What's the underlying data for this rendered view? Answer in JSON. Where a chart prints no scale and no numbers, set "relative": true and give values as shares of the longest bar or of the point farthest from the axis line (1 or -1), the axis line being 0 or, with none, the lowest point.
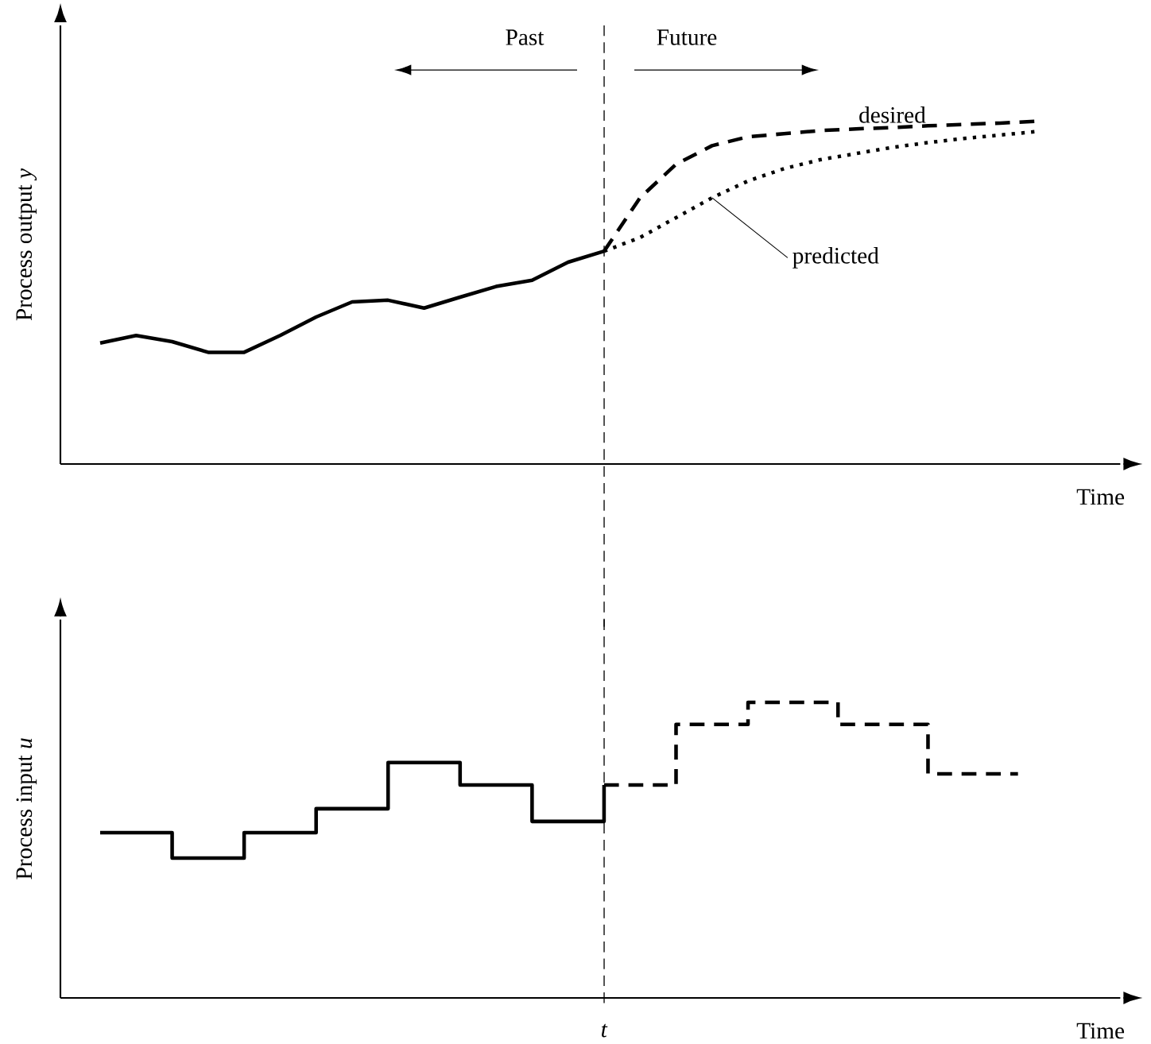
{
  "chart_data": [
    {
      "type": "line",
      "relative": true,
      "ylabel": "Process output *y*",
      "xlabel": "Time",
      "legend": false,
      "marker": "none",
      "annotations": [
        "Past",
        "Future"
      ],
      "categories": [
        null,
        null,
        null,
        null,
        null,
        null,
        null,
        null,
        null,
        null,
        null,
        null,
        null,
        null,
        null,
        null,
        null,
        null,
        null,
        null,
        null,
        null,
        null,
        null,
        null,
        null,
        null
      ],
      "series": [
        {
          "color": "#000000",
          "line_style": "solid",
          "values": [
            0.353,
            0.375,
            0.357,
            0.326,
            0.326,
            0.375,
            0.429,
            0.473,
            0.478,
            0.455,
            0.487,
            0.518,
            0.536,
            0.589,
            0.621,
            null,
            null,
            null,
            null,
            null,
            null,
            null,
            null,
            null,
            null,
            null,
            null
          ]
        },
        {
          "name": "desired",
          "color": "#000000",
          "line_style": "dashed",
          "values": [
            null,
            null,
            null,
            null,
            null,
            null,
            null,
            null,
            null,
            null,
            null,
            null,
            null,
            null,
            0.621,
            0.777,
            0.875,
            0.929,
            0.955,
            0.964,
            0.973,
            0.978,
            0.982,
            0.987,
            0.991,
            0.995,
            1.0
          ]
        },
        {
          "name": "predicted",
          "color": "#000000",
          "line_style": "dotted",
          "values": [
            null,
            null,
            null,
            null,
            null,
            null,
            null,
            null,
            null,
            null,
            null,
            null,
            null,
            null,
            0.621,
            0.661,
            0.719,
            0.777,
            0.826,
            0.862,
            0.888,
            0.906,
            0.924,
            0.938,
            0.95,
            0.96,
            0.97
          ]
        }
      ]
    },
    {
      "type": "step",
      "relative": true,
      "ylabel": "Process input *u*",
      "xlabel": "Time",
      "legend": false,
      "marker": "none",
      "annotations": [
        "*t*"
      ],
      "categories": [
        null,
        null,
        null,
        null,
        null,
        null,
        null,
        null,
        null,
        null,
        null,
        null,
        null,
        null,
        null,
        null,
        null,
        null,
        null,
        null,
        null,
        null,
        null,
        null,
        null,
        null,
        null,
        null,
        null,
        null,
        null,
        null,
        null,
        null,
        null,
        null,
        null,
        null,
        null,
        null,
        null,
        null,
        null,
        null,
        null,
        null,
        null,
        null,
        null,
        null,
        null,
        null
      ],
      "series": [
        {
          "color": "#000000",
          "line_style": "solid",
          "values": [
            0.559,
            0.559,
            0.559,
            0.559,
            0.473,
            0.473,
            0.473,
            0.473,
            0.559,
            0.559,
            0.559,
            0.559,
            0.64,
            0.64,
            0.64,
            0.64,
            0.796,
            0.796,
            0.796,
            0.796,
            0.72,
            0.72,
            0.72,
            0.72,
            0.597,
            0.597,
            0.597,
            0.597,
            0.72,
            null,
            null,
            null,
            null,
            null,
            null,
            null,
            null,
            null,
            null,
            null,
            null,
            null,
            null,
            null,
            null,
            null,
            null,
            null,
            null,
            null,
            null,
            null
          ]
        },
        {
          "color": "#000000",
          "line_style": "dashed",
          "values": [
            null,
            null,
            null,
            null,
            null,
            null,
            null,
            null,
            null,
            null,
            null,
            null,
            null,
            null,
            null,
            null,
            null,
            null,
            null,
            null,
            null,
            null,
            null,
            null,
            null,
            null,
            null,
            null,
            0.72,
            0.72,
            0.72,
            0.72,
            0.925,
            0.925,
            0.925,
            0.925,
            1.0,
            1.0,
            1.0,
            1.0,
            1.0,
            0.925,
            0.925,
            0.925,
            0.925,
            0.925,
            0.758,
            0.758,
            0.758,
            0.758,
            0.758,
            0.758
          ]
        }
      ]
    }
  ]
}
